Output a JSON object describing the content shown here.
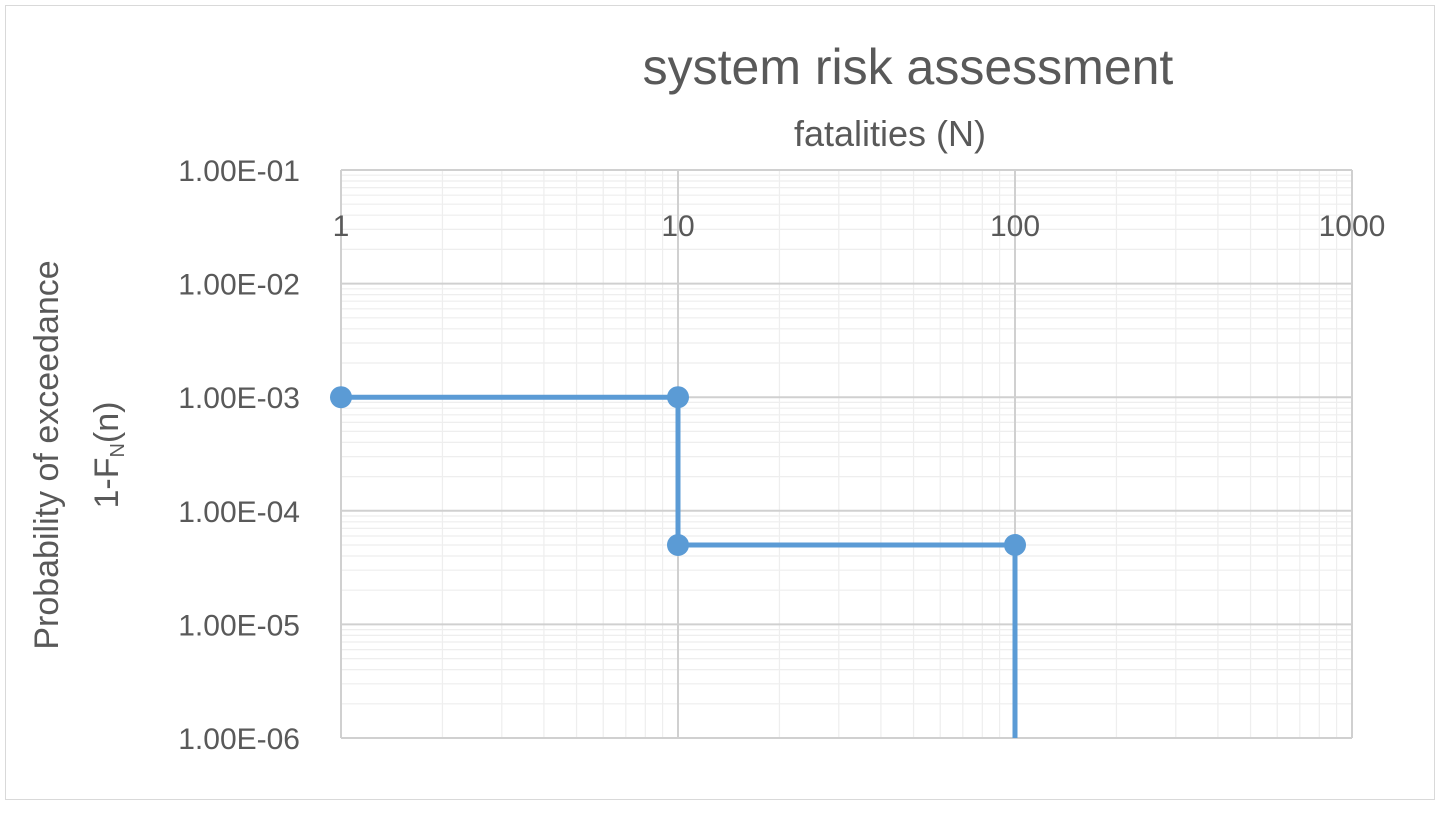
{
  "chart_data": {
    "type": "line",
    "title": "system risk assessment",
    "xlabel": "fatalities (N)",
    "ylabel_line1": "Probability of exceedance",
    "ylabel_line2_prefix": "1-F",
    "ylabel_line2_sub": "N",
    "ylabel_line2_suffix": "(n)",
    "x_scale": "log",
    "y_scale": "log",
    "xlim": [
      1,
      1000
    ],
    "ylim": [
      1e-06,
      0.1
    ],
    "x_axis_position": "top",
    "x_tick_labels": [
      "1",
      "10",
      "100",
      "1000"
    ],
    "x_tick_values": [
      1,
      10,
      100,
      1000
    ],
    "y_tick_labels": [
      "1.00E-01",
      "1.00E-02",
      "1.00E-03",
      "1.00E-04",
      "1.00E-05",
      "1.00E-06"
    ],
    "y_tick_values": [
      0.1,
      0.01,
      0.001,
      0.0001,
      1e-05,
      1e-06
    ],
    "grid": true,
    "minor_grid": true,
    "series": [
      {
        "color": "#5b9bd5",
        "points": [
          {
            "x": 1,
            "y": 0.001
          },
          {
            "x": 10,
            "y": 0.001
          },
          {
            "x": 10,
            "y": 5e-05
          },
          {
            "x": 100,
            "y": 5e-05
          },
          {
            "x": 100,
            "y": 1e-06
          }
        ],
        "markers": [
          {
            "x": 1,
            "y": 0.001
          },
          {
            "x": 10,
            "y": 0.001
          },
          {
            "x": 10,
            "y": 5e-05
          },
          {
            "x": 100,
            "y": 5e-05
          }
        ]
      }
    ]
  }
}
